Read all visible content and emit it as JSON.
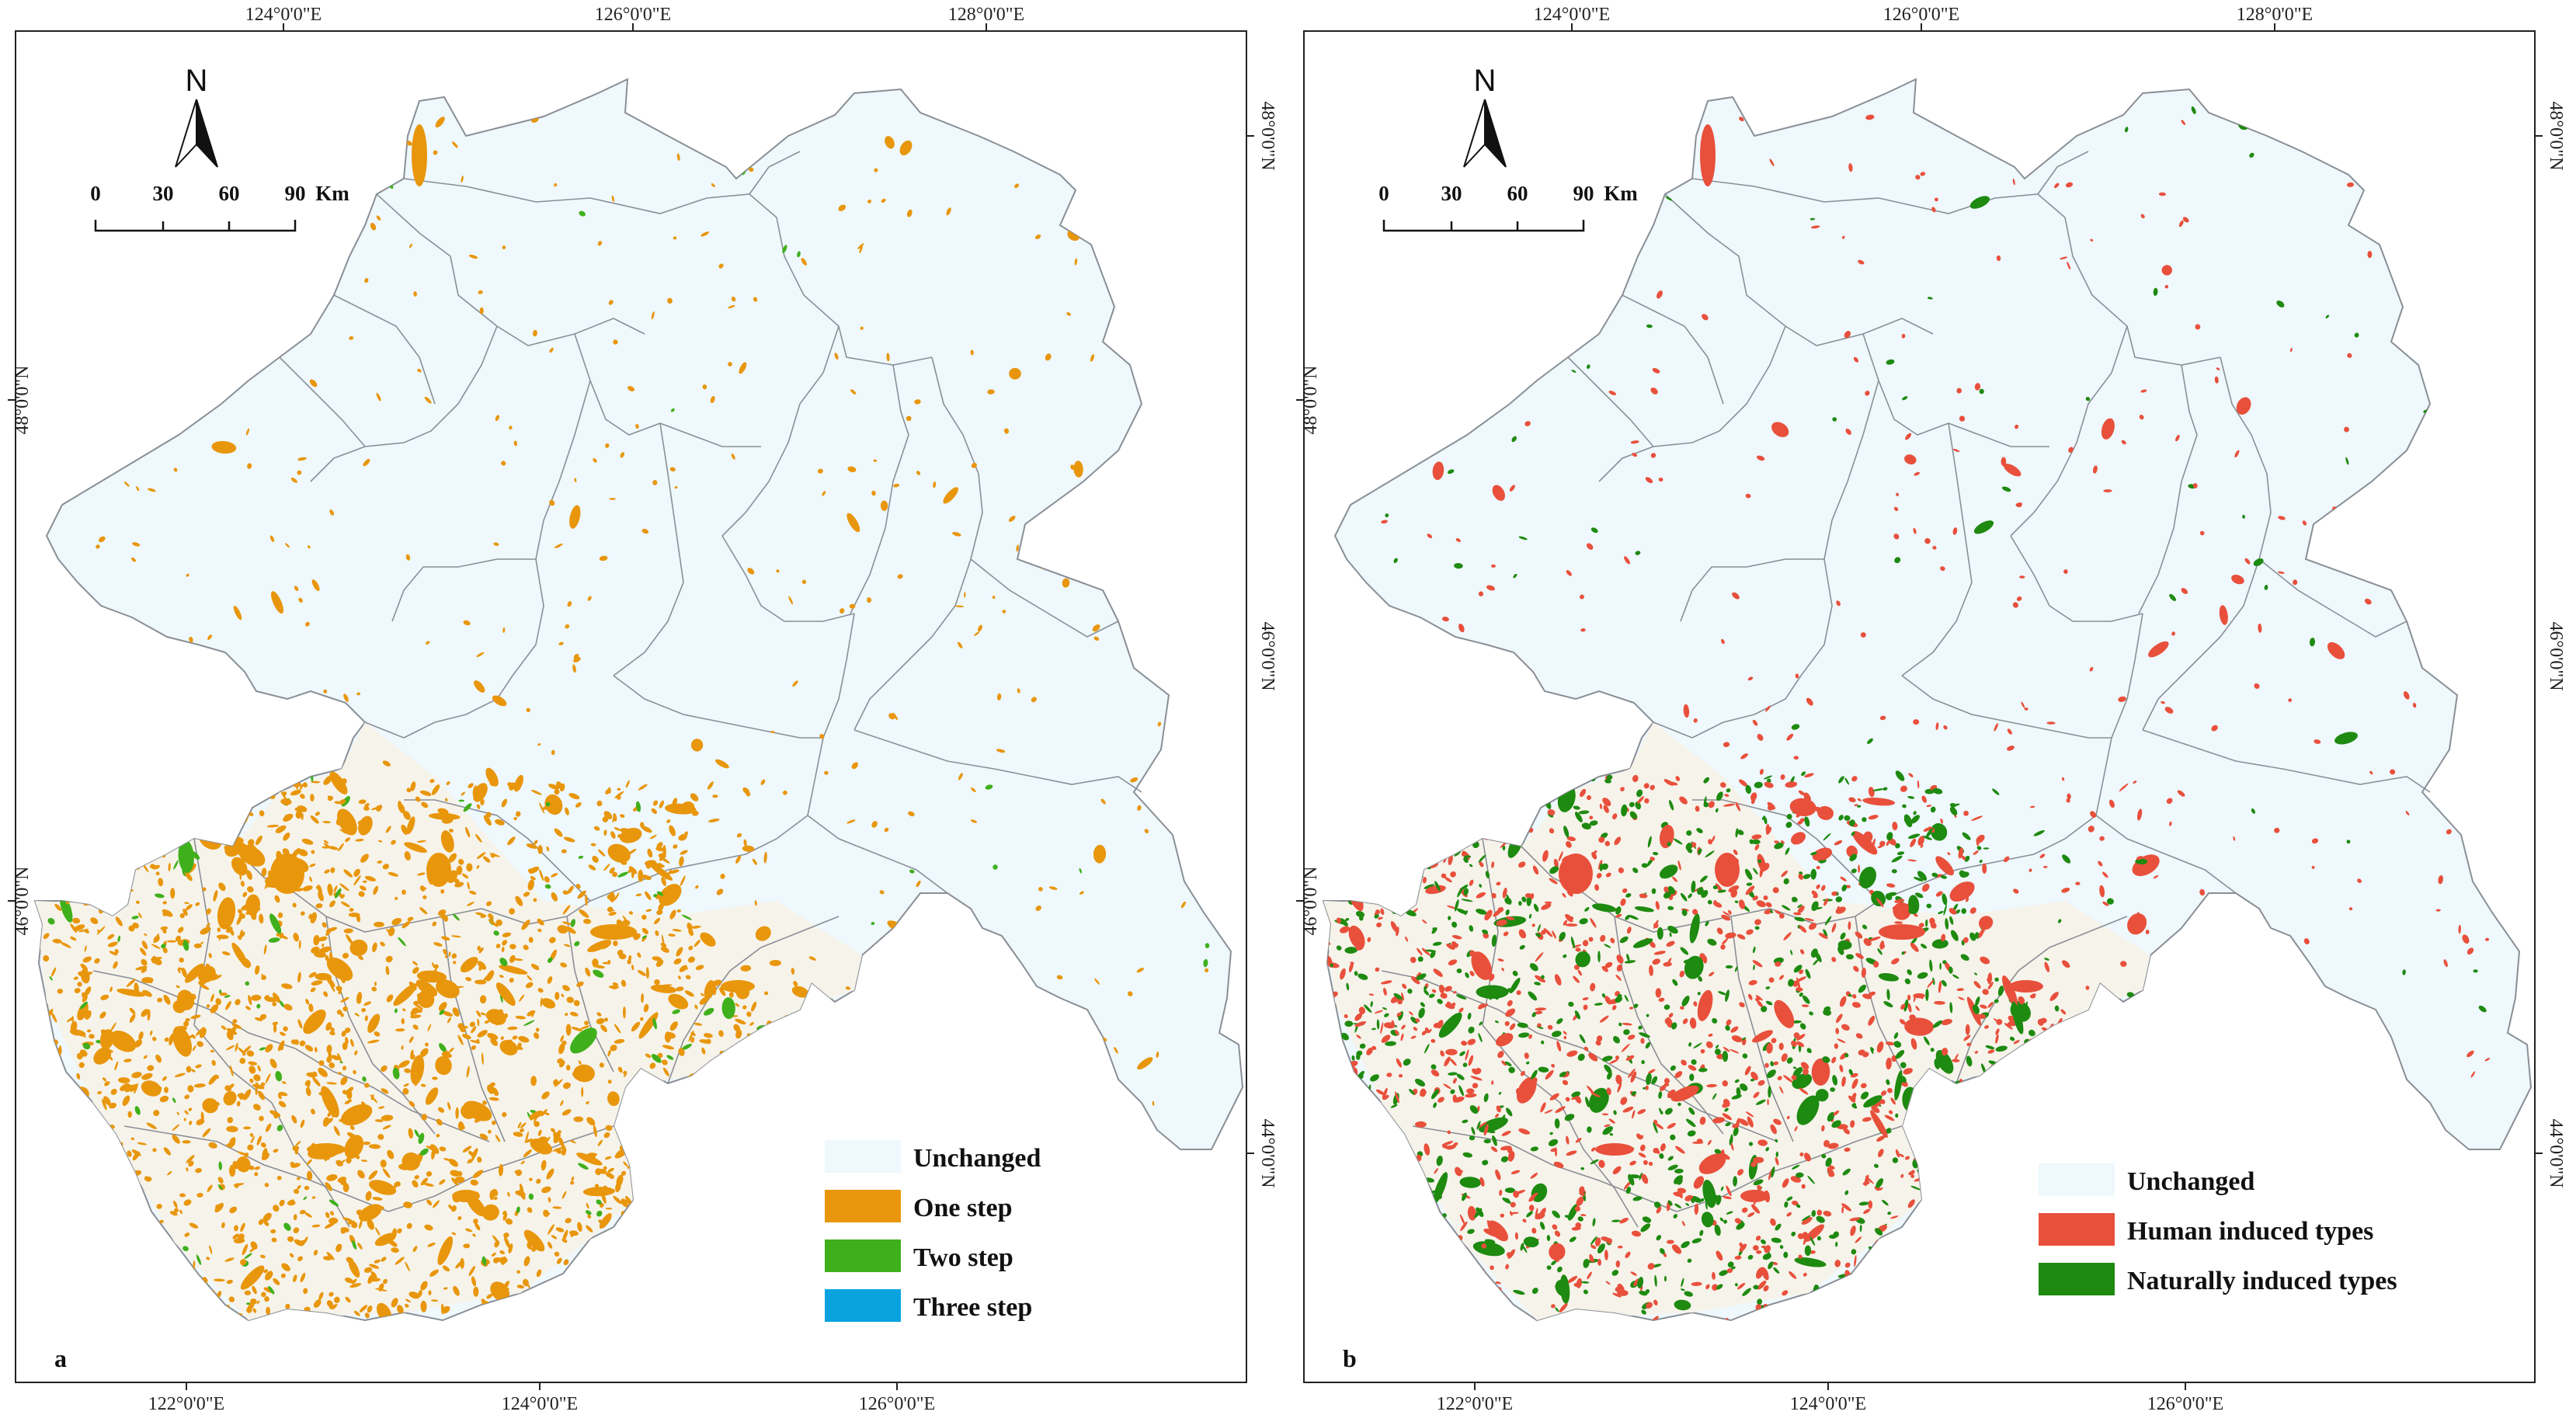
{
  "colors": {
    "unchanged": "#eef8fd",
    "one_step": "#e8960c",
    "two_step": "#3fb01c",
    "three_step": "#0aa3e0",
    "human_induced": "#e8503c",
    "naturally_induced": "#1e8a10",
    "boundary": "#8a8f96",
    "frame": "#222222"
  },
  "panels": [
    {
      "id": "a",
      "label": "a",
      "top_ticks": [
        "124°0'0\"E",
        "126°0'0\"E",
        "128°0'0\"E"
      ],
      "bottom_ticks": [
        "122°0'0\"E",
        "124°0'0\"E",
        "126°0'0\"E"
      ],
      "left_ticks": [
        "48°0'0\"N",
        "46°0'0\"N"
      ],
      "right_ticks": [
        "48°0'0\"N",
        "46°0'0\"N",
        "44°0'0\"N"
      ],
      "north": "N",
      "scale": {
        "labels": [
          "0",
          "30",
          "60",
          "90"
        ],
        "unit": "Km"
      },
      "legend": [
        {
          "label": "Unchanged",
          "color_key": "unchanged"
        },
        {
          "label": "One step",
          "color_key": "one_step"
        },
        {
          "label": "Two step",
          "color_key": "two_step"
        },
        {
          "label": "Three step",
          "color_key": "three_step"
        }
      ]
    },
    {
      "id": "b",
      "label": "b",
      "top_ticks": [
        "124°0'0\"E",
        "126°0'0\"E",
        "128°0'0\"E"
      ],
      "bottom_ticks": [
        "122°0'0\"E",
        "124°0'0\"E",
        "126°0'0\"E"
      ],
      "left_ticks": [
        "48°0'0\"N",
        "46°0'0\"N"
      ],
      "right_ticks": [
        "48°0'0\"N",
        "46°0'0\"N",
        "44°0'0\"N"
      ],
      "north": "N",
      "scale": {
        "labels": [
          "0",
          "30",
          "60",
          "90"
        ],
        "unit": "Km"
      },
      "legend": [
        {
          "label": "Unchanged",
          "color_key": "unchanged"
        },
        {
          "label": "Human induced types",
          "color_key": "human_induced"
        },
        {
          "label": "Naturally induced types",
          "color_key": "naturally_induced"
        }
      ]
    }
  ]
}
